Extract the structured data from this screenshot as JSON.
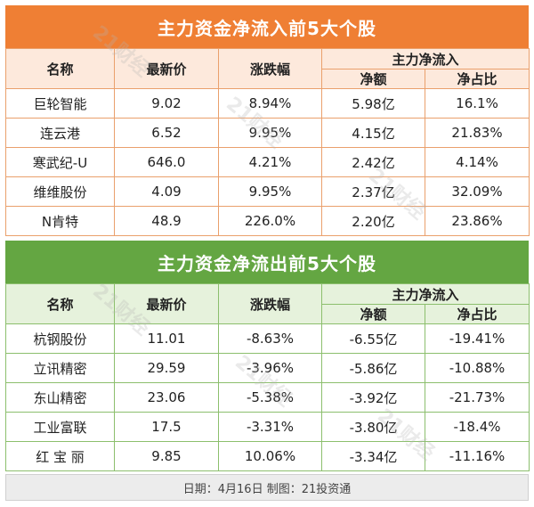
{
  "inflow": {
    "title": "主力资金净流入前5大个股",
    "headers": {
      "name": "名称",
      "price": "最新价",
      "change": "涨跌幅",
      "group": "主力净流入",
      "amount": "净额",
      "ratio": "净占比"
    },
    "rows": [
      {
        "name": "巨轮智能",
        "price": "9.02",
        "change": "8.94%",
        "amount": "5.98亿",
        "ratio": "16.1%"
      },
      {
        "name": "连云港",
        "price": "6.52",
        "change": "9.95%",
        "amount": "4.15亿",
        "ratio": "21.83%"
      },
      {
        "name": "寒武纪-U",
        "price": "646.0",
        "change": "4.21%",
        "amount": "2.42亿",
        "ratio": "4.14%"
      },
      {
        "name": "维维股份",
        "price": "4.09",
        "change": "9.95%",
        "amount": "2.37亿",
        "ratio": "32.09%"
      },
      {
        "name": "N肯特",
        "price": "48.9",
        "change": "226.0%",
        "amount": "2.20亿",
        "ratio": "23.86%"
      }
    ]
  },
  "outflow": {
    "title": "主力资金净流出前5大个股",
    "headers": {
      "name": "名称",
      "price": "最新价",
      "change": "涨跌幅",
      "group": "主力净流入",
      "amount": "净额",
      "ratio": "净占比"
    },
    "rows": [
      {
        "name": "杭钢股份",
        "price": "11.01",
        "change": "-8.63%",
        "amount": "-6.55亿",
        "ratio": "-19.41%"
      },
      {
        "name": "立讯精密",
        "price": "29.59",
        "change": "-3.96%",
        "amount": "-5.86亿",
        "ratio": "-10.88%"
      },
      {
        "name": "东山精密",
        "price": "23.06",
        "change": "-5.38%",
        "amount": "-3.92亿",
        "ratio": "-21.73%"
      },
      {
        "name": "工业富联",
        "price": "17.5",
        "change": "-3.31%",
        "amount": "-3.80亿",
        "ratio": "-18.4%"
      },
      {
        "name": "红 宝 丽",
        "price": "9.85",
        "change": "10.06%",
        "amount": "-3.34亿",
        "ratio": "-11.16%"
      }
    ]
  },
  "footer": "日期：4月16日 制图：21投资通",
  "watermark": "21财经",
  "colors": {
    "inflow_header": "#ef7f34",
    "outflow_header": "#64a642"
  }
}
